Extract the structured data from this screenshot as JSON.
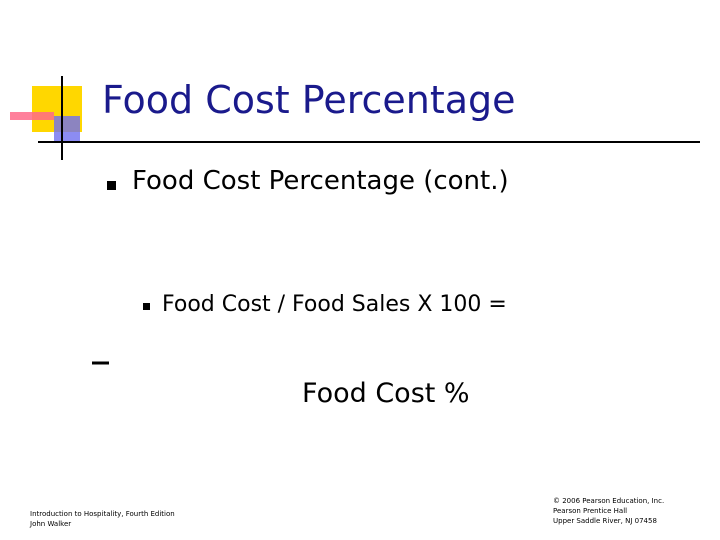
{
  "title": "Food Cost Percentage",
  "bullets": [
    "Food Cost Percentage (cont.)",
    "Food Cost / Food Sales X 100 =",
    "Food Cost %"
  ],
  "footer": {
    "left": [
      "Introduction to Hospitality, Fourth Edition",
      "John Walker"
    ],
    "right": [
      "© 2006 Pearson Education, Inc.",
      "Pearson Prentice Hall",
      "Upper Saddle River, NJ 07458"
    ]
  }
}
